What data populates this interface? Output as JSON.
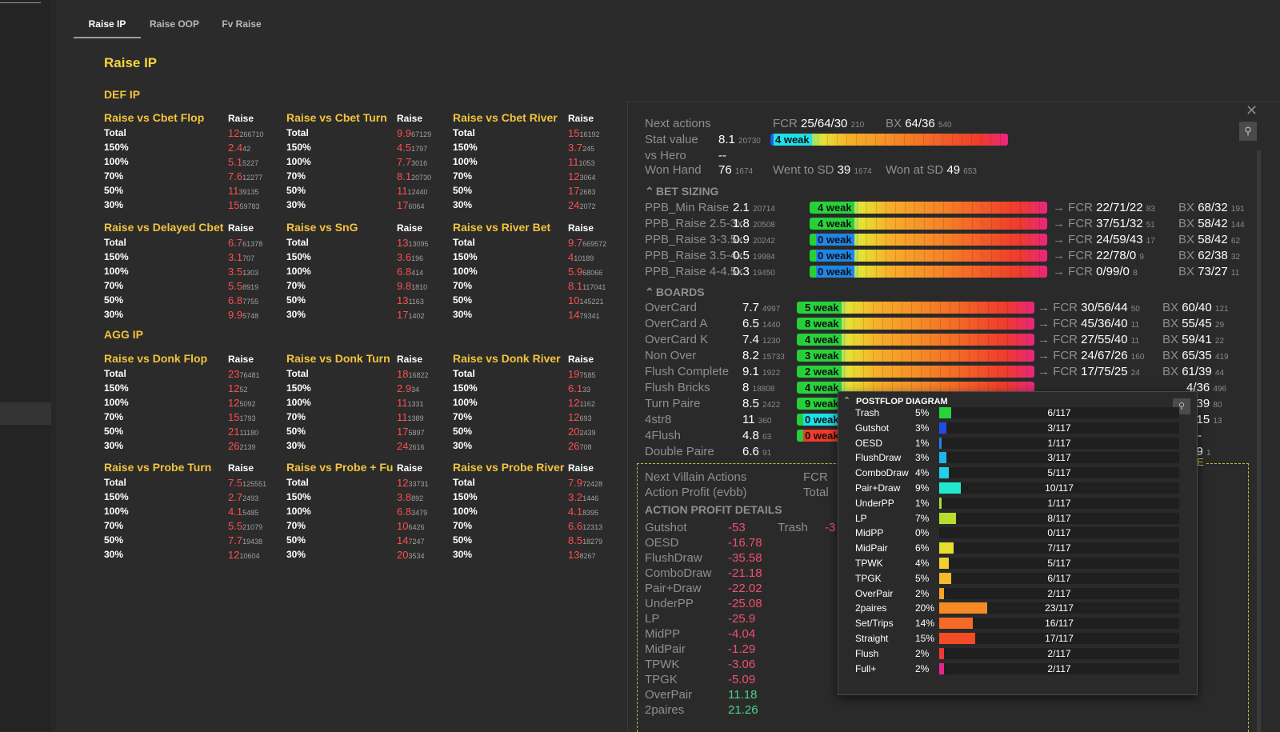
{
  "tabs": [
    {
      "label": "Raise IP"
    },
    {
      "label": "Raise OOP"
    },
    {
      "label": "Fv Raise"
    }
  ],
  "page_title": "Raise IP",
  "sections": [
    {
      "title": "DEF IP"
    },
    {
      "title": "AGG IP"
    }
  ],
  "stat_blocks": [
    {
      "title": "Raise vs Cbet Flop",
      "col": "Raise",
      "rows": [
        [
          "Total",
          "12",
          "266710"
        ],
        [
          "150%",
          "2.4",
          "42"
        ],
        [
          "100%",
          "5.1",
          "5227"
        ],
        [
          "70%",
          "7.6",
          "12277"
        ],
        [
          "50%",
          "11",
          "39135"
        ],
        [
          "30%",
          "15",
          "59783"
        ]
      ]
    },
    {
      "title": "Raise vs Cbet Turn",
      "col": "Raise",
      "rows": [
        [
          "Total",
          "9.9",
          "67129"
        ],
        [
          "150%",
          "4.5",
          "1797"
        ],
        [
          "100%",
          "7.7",
          "3016"
        ],
        [
          "70%",
          "8.1",
          "20730"
        ],
        [
          "50%",
          "11",
          "12440"
        ],
        [
          "30%",
          "17",
          "6064"
        ]
      ]
    },
    {
      "title": "Raise vs Cbet River",
      "col": "Raise",
      "rows": [
        [
          "Total",
          "15",
          "16192"
        ],
        [
          "150%",
          "3.7",
          "245"
        ],
        [
          "100%",
          "11",
          "1053"
        ],
        [
          "70%",
          "12",
          "3064"
        ],
        [
          "50%",
          "17",
          "2683"
        ],
        [
          "30%",
          "24",
          "2072"
        ]
      ]
    },
    {
      "title": "Raise vs Delayed Cbet",
      "col": "Raise",
      "rows": [
        [
          "Total",
          "6.7",
          "61378"
        ],
        [
          "150%",
          "3.1",
          "707"
        ],
        [
          "100%",
          "3.5",
          "1303"
        ],
        [
          "70%",
          "5.5",
          "8919"
        ],
        [
          "50%",
          "6.8",
          "7755"
        ],
        [
          "30%",
          "9.9",
          "5748"
        ]
      ]
    },
    {
      "title": "Raise vs SnG",
      "col": "Raise",
      "rows": [
        [
          "Total",
          "13",
          "13095"
        ],
        [
          "150%",
          "3.6",
          "196"
        ],
        [
          "100%",
          "6.8",
          "414"
        ],
        [
          "70%",
          "9.8",
          "1810"
        ],
        [
          "50%",
          "13",
          "1163"
        ],
        [
          "30%",
          "17",
          "1402"
        ]
      ]
    },
    {
      "title": "Raise vs River Bet",
      "col": "Raise",
      "rows": [
        [
          "Total",
          "9.7",
          "669572"
        ],
        [
          "150%",
          "4",
          "10189"
        ],
        [
          "100%",
          "5.9",
          "68066"
        ],
        [
          "70%",
          "8.1",
          "117041"
        ],
        [
          "50%",
          "10",
          "145221"
        ],
        [
          "30%",
          "14",
          "79341"
        ]
      ]
    },
    {
      "title": "Raise vs Donk Flop",
      "col": "Raise",
      "rows": [
        [
          "Total",
          "23",
          "76481"
        ],
        [
          "150%",
          "12",
          "52"
        ],
        [
          "100%",
          "12",
          "5092"
        ],
        [
          "70%",
          "15",
          "1793"
        ],
        [
          "50%",
          "21",
          "11180"
        ],
        [
          "30%",
          "26",
          "2139"
        ]
      ]
    },
    {
      "title": "Raise vs Donk Turn",
      "col": "Raise",
      "rows": [
        [
          "Total",
          "18",
          "16822"
        ],
        [
          "150%",
          "2.9",
          "34"
        ],
        [
          "100%",
          "11",
          "1331"
        ],
        [
          "70%",
          "11",
          "1389"
        ],
        [
          "50%",
          "17",
          "5897"
        ],
        [
          "30%",
          "24",
          "2616"
        ]
      ]
    },
    {
      "title": "Raise vs Donk River",
      "col": "Raise",
      "rows": [
        [
          "Total",
          "19",
          "7585"
        ],
        [
          "150%",
          "6.1",
          "33"
        ],
        [
          "100%",
          "12",
          "1162"
        ],
        [
          "70%",
          "12",
          "693"
        ],
        [
          "50%",
          "20",
          "2439"
        ],
        [
          "30%",
          "26",
          "708"
        ]
      ]
    },
    {
      "title": "Raise vs Probe Turn",
      "col": "Raise",
      "rows": [
        [
          "Total",
          "7.5",
          "125551"
        ],
        [
          "150%",
          "2.7",
          "2493"
        ],
        [
          "100%",
          "4.1",
          "5485"
        ],
        [
          "70%",
          "5.5",
          "21079"
        ],
        [
          "50%",
          "7.7",
          "19438"
        ],
        [
          "30%",
          "12",
          "10604"
        ]
      ]
    },
    {
      "title": "Raise vs Probe + Fu",
      "col": "Raise",
      "rows": [
        [
          "Total",
          "12",
          "33731"
        ],
        [
          "150%",
          "3.8",
          "892"
        ],
        [
          "100%",
          "6.8",
          "3479"
        ],
        [
          "70%",
          "10",
          "6426"
        ],
        [
          "50%",
          "14",
          "7247"
        ],
        [
          "30%",
          "20",
          "3534"
        ]
      ]
    },
    {
      "title": "Raise vs Probe River",
      "col": "Raise",
      "rows": [
        [
          "Total",
          "7.9",
          "72428"
        ],
        [
          "150%",
          "3.2",
          "1446"
        ],
        [
          "100%",
          "4.1",
          "8395"
        ],
        [
          "70%",
          "6.6",
          "12313"
        ],
        [
          "50%",
          "8.5",
          "18279"
        ],
        [
          "30%",
          "13",
          "8267"
        ]
      ]
    }
  ],
  "hud": {
    "close": "✕",
    "next_actions_label": "Next actions",
    "next_actions_fcr": "FCR",
    "next_actions_fcr_val": "25/64/30",
    "next_actions_fcr_cnt": "210",
    "next_actions_bx": "BX",
    "next_actions_bx_val": "64/36",
    "next_actions_bx_cnt": "540",
    "stat_value_label": "Stat value",
    "stat_value": "8.1",
    "stat_value_cnt": "20730",
    "stat_bar_label": "4 weak",
    "vs_hero_label": "vs Hero",
    "vs_hero_val": "--",
    "won_hand_label": "Won Hand",
    "won_hand_val": "76",
    "won_hand_cnt": "1674",
    "went_sd_label": "Went to SD",
    "went_sd_val": "39",
    "went_sd_cnt": "1674",
    "won_sd_label": "Won at SD",
    "won_sd_val": "49",
    "won_sd_cnt": "653",
    "bet_sizing_title": "BET SIZING",
    "bet_sizing": [
      {
        "name": "PPB_Min Raise",
        "val": "2.1",
        "cnt": "20714",
        "bar": "4 weak",
        "fcr": "22/71/22",
        "fcr_cnt": "83",
        "bx": "68/32",
        "bx_cnt": "191"
      },
      {
        "name": "PPB_Raise 2.5-3x",
        "val": "1.8",
        "cnt": "20508",
        "bar": "4 weak",
        "fcr": "37/51/32",
        "fcr_cnt": "51",
        "bx": "58/42",
        "bx_cnt": "144"
      },
      {
        "name": "PPB_Raise 3-3.5x",
        "val": "0.9",
        "cnt": "20242",
        "bar": "0 weak",
        "fcr": "24/59/43",
        "fcr_cnt": "17",
        "bx": "58/42",
        "bx_cnt": "62"
      },
      {
        "name": "PPB_Raise 3.5-4x",
        "val": "0.5",
        "cnt": "19984",
        "bar": "0 weak",
        "fcr": "22/78/0",
        "fcr_cnt": "9",
        "bx": "62/38",
        "bx_cnt": "32"
      },
      {
        "name": "PPB_Raise 4-4.5x",
        "val": "0.3",
        "cnt": "19450",
        "bar": "0 weak",
        "fcr": "0/99/0",
        "fcr_cnt": "8",
        "bx": "73/27",
        "bx_cnt": "11"
      }
    ],
    "boards_title": "BOARDS",
    "boards": [
      {
        "name": "OverCard",
        "val": "7.7",
        "cnt": "4997",
        "bar": "5 weak",
        "fcr": "30/56/44",
        "fcr_cnt": "50",
        "bx": "60/40",
        "bx_cnt": "121"
      },
      {
        "name": "OverCard A",
        "val": "6.5",
        "cnt": "1440",
        "bar": "8 weak",
        "fcr": "45/36/40",
        "fcr_cnt": "11",
        "bx": "55/45",
        "bx_cnt": "29"
      },
      {
        "name": "OverCard K",
        "val": "7.4",
        "cnt": "1230",
        "bar": "4 weak",
        "fcr": "27/55/40",
        "fcr_cnt": "11",
        "bx": "59/41",
        "bx_cnt": "22"
      },
      {
        "name": "Non Over",
        "val": "8.2",
        "cnt": "15733",
        "bar": "3 weak",
        "fcr": "24/67/26",
        "fcr_cnt": "160",
        "bx": "65/35",
        "bx_cnt": "419"
      },
      {
        "name": "Flush Complete",
        "val": "9.1",
        "cnt": "1922",
        "bar": "2 weak",
        "fcr": "17/75/25",
        "fcr_cnt": "24",
        "bx": "61/39",
        "bx_cnt": "44"
      },
      {
        "name": "Flush Bricks",
        "val": "8",
        "cnt": "18808",
        "bar": "4 weak",
        "tail": "4/36",
        "tail_cnt": "496"
      },
      {
        "name": "Turn Paire",
        "val": "8.5",
        "cnt": "2422",
        "bar": "9 weak",
        "tail": "1/39",
        "tail_cnt": "80"
      },
      {
        "name": "4str8",
        "val": "11",
        "cnt": "360",
        "bar": "0 weak",
        "tail": "5/15",
        "tail_cnt": "13"
      },
      {
        "name": "4Flush",
        "val": "4.8",
        "cnt": "63",
        "bar": "0 weak",
        "tail": "-/--",
        "tail_cnt": ""
      },
      {
        "name": "Double Paire",
        "val": "6.6",
        "cnt": "91",
        "bar": "",
        "tail": "/99",
        "tail_cnt": "1"
      }
    ],
    "edge_label": "EDGE",
    "next_villain_label": "Next Villain Actions",
    "action_profit_label": "Action Profit (evbb)",
    "fcr_short": "FCR",
    "total_short": "Total",
    "apd_title": "ACTION PROFIT DETAILS",
    "trash_label": "Trash",
    "trash_val": "-3",
    "action_profits": [
      {
        "name": "Gutshot",
        "val": "-53"
      },
      {
        "name": "OESD",
        "val": "-16.78"
      },
      {
        "name": "FlushDraw",
        "val": "-35.58"
      },
      {
        "name": "ComboDraw",
        "val": "-21.18"
      },
      {
        "name": "Pair+Draw",
        "val": "-22.02"
      },
      {
        "name": "UnderPP",
        "val": "-25.08"
      },
      {
        "name": "LP",
        "val": "-25.9"
      },
      {
        "name": "MidPP",
        "val": "-4.04"
      },
      {
        "name": "MidPair",
        "val": "-1.29"
      },
      {
        "name": "TPWK",
        "val": "-3.06"
      },
      {
        "name": "TPGK",
        "val": "-5.09"
      },
      {
        "name": "OverPair",
        "val": "11.18"
      },
      {
        "name": "2paires",
        "val": "21.26"
      }
    ]
  },
  "postflop": {
    "title": "POSTFLOP DIAGRAM",
    "rows": [
      {
        "name": "Trash",
        "pct": "5%",
        "count": "6/117",
        "frac": 0.05,
        "color": "#27d33a"
      },
      {
        "name": "Gutshot",
        "pct": "3%",
        "count": "3/117",
        "frac": 0.03,
        "color": "#1f4fe0"
      },
      {
        "name": "OESD",
        "pct": "1%",
        "count": "1/117",
        "frac": 0.01,
        "color": "#1f86e8"
      },
      {
        "name": "FlushDraw",
        "pct": "3%",
        "count": "3/117",
        "frac": 0.03,
        "color": "#1fb4ea"
      },
      {
        "name": "ComboDraw",
        "pct": "4%",
        "count": "5/117",
        "frac": 0.04,
        "color": "#1fd0e8"
      },
      {
        "name": "Pair+Draw",
        "pct": "9%",
        "count": "10/117",
        "frac": 0.09,
        "color": "#22e7cd"
      },
      {
        "name": "UnderPP",
        "pct": "1%",
        "count": "1/117",
        "frac": 0.01,
        "color": "#9be23a"
      },
      {
        "name": "LP",
        "pct": "7%",
        "count": "8/117",
        "frac": 0.07,
        "color": "#b8dd2e"
      },
      {
        "name": "MidPP",
        "pct": "0%",
        "count": "0/117",
        "frac": 0.0,
        "color": "#d9de2e"
      },
      {
        "name": "MidPair",
        "pct": "6%",
        "count": "7/117",
        "frac": 0.06,
        "color": "#e6dd2e"
      },
      {
        "name": "TPWK",
        "pct": "4%",
        "count": "5/117",
        "frac": 0.04,
        "color": "#f2cf2c"
      },
      {
        "name": "TPGK",
        "pct": "5%",
        "count": "6/117",
        "frac": 0.05,
        "color": "#f7b928"
      },
      {
        "name": "OverPair",
        "pct": "2%",
        "count": "2/117",
        "frac": 0.02,
        "color": "#f7a326"
      },
      {
        "name": "2paires",
        "pct": "20%",
        "count": "23/117",
        "frac": 0.2,
        "color": "#f68a24"
      },
      {
        "name": "Set/Trips",
        "pct": "14%",
        "count": "16/117",
        "frac": 0.14,
        "color": "#f56a24"
      },
      {
        "name": "Straight",
        "pct": "15%",
        "count": "17/117",
        "frac": 0.15,
        "color": "#f24d24"
      },
      {
        "name": "Flush",
        "pct": "2%",
        "count": "2/117",
        "frac": 0.02,
        "color": "#ee3a33"
      },
      {
        "name": "Full+",
        "pct": "2%",
        "count": "2/117",
        "frac": 0.02,
        "color": "#e8268a"
      }
    ]
  },
  "colors": {
    "accent_yellow": "#f3c33c",
    "value_red": "#ff4e4e",
    "positive_green": "#4fd18b",
    "negative_pink": "#f0506e"
  }
}
